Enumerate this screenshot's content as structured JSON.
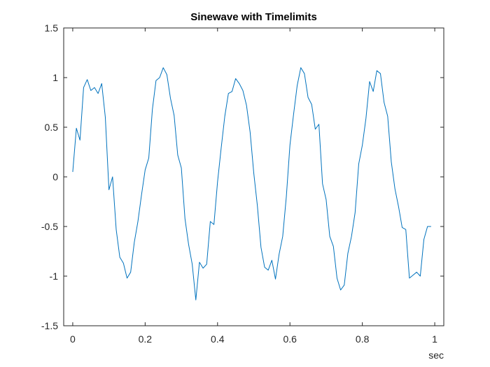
{
  "chart_data": {
    "type": "line",
    "title": "Sinewave with Timelimits",
    "xlabel": "sec",
    "ylabel": "",
    "xlim": [
      -0.025,
      1.025
    ],
    "ylim": [
      -1.5,
      1.5
    ],
    "xticks": [
      0,
      0.2,
      0.4,
      0.6,
      0.8,
      1
    ],
    "xtick_labels": [
      "0",
      "0.2",
      "0.4",
      "0.6",
      "0.8",
      "1"
    ],
    "yticks": [
      -1.5,
      -1,
      -0.5,
      0,
      0.5,
      1,
      1.5
    ],
    "ytick_labels": [
      "-1.5",
      "-1",
      "-0.5",
      "0",
      "0.5",
      "1",
      "1.5"
    ],
    "grid": false,
    "box": true,
    "line_color": "#0072BD",
    "series": [
      {
        "x": [
          0,
          0.01,
          0.02,
          0.03,
          0.04,
          0.05,
          0.06,
          0.07,
          0.08,
          0.09,
          0.1,
          0.11,
          0.12,
          0.13,
          0.14,
          0.15,
          0.16,
          0.17,
          0.18,
          0.19,
          0.2,
          0.21,
          0.22,
          0.23,
          0.24,
          0.25,
          0.26,
          0.27,
          0.28,
          0.29,
          0.3,
          0.31,
          0.32,
          0.33,
          0.34,
          0.35,
          0.36,
          0.37,
          0.38,
          0.39,
          0.4,
          0.41,
          0.42,
          0.43,
          0.44,
          0.45,
          0.46,
          0.47,
          0.48,
          0.49,
          0.5,
          0.51,
          0.52,
          0.53,
          0.54,
          0.55,
          0.56,
          0.57,
          0.58,
          0.59,
          0.6,
          0.61,
          0.62,
          0.63,
          0.64,
          0.65,
          0.66,
          0.67,
          0.68,
          0.69,
          0.7,
          0.71,
          0.72,
          0.73,
          0.74,
          0.75,
          0.76,
          0.77,
          0.78,
          0.79,
          0.8,
          0.81,
          0.82,
          0.83,
          0.84,
          0.85,
          0.86,
          0.87,
          0.88,
          0.89,
          0.9,
          0.91,
          0.92,
          0.93,
          0.94,
          0.95,
          0.96,
          0.97,
          0.98,
          0.99
        ],
        "values": [
          0.05,
          0.49,
          0.37,
          0.9,
          0.98,
          0.87,
          0.9,
          0.84,
          0.94,
          0.6,
          -0.13,
          0.0,
          -0.53,
          -0.81,
          -0.87,
          -1.02,
          -0.96,
          -0.66,
          -0.45,
          -0.18,
          0.07,
          0.19,
          0.68,
          0.97,
          1.0,
          1.1,
          1.03,
          0.79,
          0.62,
          0.22,
          0.09,
          -0.42,
          -0.68,
          -0.88,
          -1.24,
          -0.86,
          -0.92,
          -0.88,
          -0.45,
          -0.48,
          -0.05,
          0.29,
          0.61,
          0.84,
          0.86,
          0.99,
          0.94,
          0.87,
          0.72,
          0.45,
          0.04,
          -0.29,
          -0.71,
          -0.91,
          -0.94,
          -0.84,
          -1.03,
          -0.78,
          -0.6,
          -0.2,
          0.32,
          0.63,
          0.92,
          1.1,
          1.04,
          0.8,
          0.73,
          0.48,
          0.53,
          -0.07,
          -0.23,
          -0.6,
          -0.7,
          -1.02,
          -1.14,
          -1.09,
          -0.77,
          -0.6,
          -0.36,
          0.13,
          0.32,
          0.59,
          0.96,
          0.86,
          1.07,
          1.04,
          0.75,
          0.61,
          0.15,
          -0.12,
          -0.3,
          -0.51,
          -0.53,
          -1.02,
          -0.99,
          -0.96,
          -1.0,
          -0.63,
          -0.5,
          -0.5
        ]
      }
    ]
  }
}
